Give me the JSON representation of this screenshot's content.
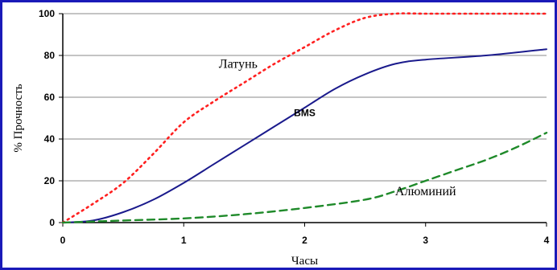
{
  "chart_data": {
    "type": "line",
    "xlabel": "Часы",
    "ylabel": "% Прочность",
    "xlim": [
      0,
      4
    ],
    "ylim": [
      0,
      100
    ],
    "x_ticks": [
      "0",
      "1",
      "2",
      "3",
      "4"
    ],
    "y_ticks": [
      "0",
      "20",
      "40",
      "60",
      "80",
      "100"
    ],
    "grid": "horizontal",
    "series": [
      {
        "name": "Латунь",
        "color": "#ff2020",
        "style": "dotted",
        "x": [
          0,
          0.25,
          0.5,
          0.75,
          1.0,
          1.25,
          1.5,
          1.75,
          2.0,
          2.25,
          2.5,
          2.75,
          3.0,
          3.5,
          4.0
        ],
        "y": [
          0,
          9,
          19,
          33,
          48,
          58,
          67,
          76,
          84,
          92,
          98,
          100,
          100,
          100,
          100
        ]
      },
      {
        "name": "BMS",
        "color": "#1a1a8c",
        "style": "solid",
        "x": [
          0,
          0.25,
          0.5,
          0.75,
          1.0,
          1.25,
          1.5,
          1.75,
          2.0,
          2.25,
          2.5,
          2.75,
          3.0,
          3.5,
          4.0
        ],
        "y": [
          0,
          1,
          5,
          11,
          19,
          28,
          37,
          46,
          55,
          64,
          71,
          76,
          78,
          80,
          83
        ]
      },
      {
        "name": "Алюминий",
        "color": "#1f8a2a",
        "style": "dashed",
        "x": [
          0,
          0.5,
          1.0,
          1.5,
          2.0,
          2.5,
          2.75,
          3.0,
          3.25,
          3.5,
          3.75,
          4.0
        ],
        "y": [
          0,
          1,
          2,
          4,
          7,
          11,
          15,
          20,
          25,
          30,
          36,
          43
        ]
      }
    ],
    "annotations": [
      {
        "text": "Латунь",
        "x": 1.45,
        "y": 74
      },
      {
        "text": "BMS",
        "x": 2.0,
        "y": 51
      },
      {
        "text": "Алюминий",
        "x": 3.0,
        "y": 13
      }
    ]
  }
}
